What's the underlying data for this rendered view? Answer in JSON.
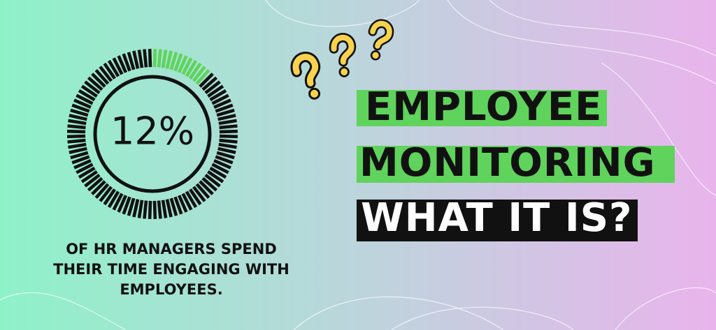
{
  "chart_data": {
    "type": "gauge",
    "value": 12,
    "value_label": "12%",
    "ylim": [
      0,
      100
    ],
    "color": "#5fd35b"
  },
  "caption": [
    "OF HR MANAGERS SPEND",
    "THEIR TIME ENGAGING WITH",
    "EMPLOYEES."
  ],
  "headline": [
    "EMPLOYEE",
    "MONITORING",
    "WHAT IT IS?"
  ]
}
